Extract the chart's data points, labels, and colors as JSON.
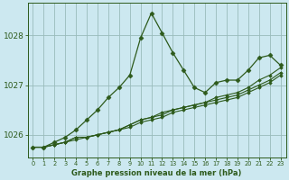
{
  "title": "Graphe pression niveau de la mer (hPa)",
  "bg_color": "#cce8f0",
  "grid_color": "#99bbbb",
  "line_color": "#2d5a1b",
  "marker_color": "#2d5a1b",
  "xlim": [
    -0.5,
    23.5
  ],
  "ylim": [
    1025.55,
    1028.65
  ],
  "yticks": [
    1026,
    1027,
    1028
  ],
  "xticks": [
    0,
    1,
    2,
    3,
    4,
    5,
    6,
    7,
    8,
    9,
    10,
    11,
    12,
    13,
    14,
    15,
    16,
    17,
    18,
    19,
    20,
    21,
    22,
    23
  ],
  "series": {
    "main": [
      1025.75,
      1025.75,
      1025.85,
      1025.95,
      1026.1,
      1026.3,
      1026.5,
      1026.75,
      1026.95,
      1027.2,
      1027.95,
      1028.45,
      1028.05,
      1027.65,
      1027.3,
      1026.95,
      1026.85,
      1027.05,
      1027.1,
      1027.1,
      1027.3,
      1027.55,
      1027.6,
      1027.4
    ],
    "line2": [
      1025.75,
      1025.75,
      1025.8,
      1025.85,
      1025.95,
      1025.95,
      1026.0,
      1026.05,
      1026.1,
      1026.2,
      1026.3,
      1026.35,
      1026.45,
      1026.5,
      1026.55,
      1026.6,
      1026.65,
      1026.75,
      1026.8,
      1026.85,
      1026.95,
      1027.1,
      1027.2,
      1027.35
    ],
    "line3": [
      1025.75,
      1025.75,
      1025.8,
      1025.85,
      1025.95,
      1025.95,
      1026.0,
      1026.05,
      1026.1,
      1026.2,
      1026.3,
      1026.35,
      1026.4,
      1026.5,
      1026.55,
      1026.6,
      1026.65,
      1026.7,
      1026.75,
      1026.8,
      1026.9,
      1027.0,
      1027.1,
      1027.25
    ],
    "line4": [
      1025.75,
      1025.75,
      1025.8,
      1025.85,
      1025.9,
      1025.95,
      1026.0,
      1026.05,
      1026.1,
      1026.15,
      1026.25,
      1026.3,
      1026.35,
      1026.45,
      1026.5,
      1026.55,
      1026.6,
      1026.65,
      1026.7,
      1026.75,
      1026.85,
      1026.95,
      1027.05,
      1027.2
    ]
  }
}
